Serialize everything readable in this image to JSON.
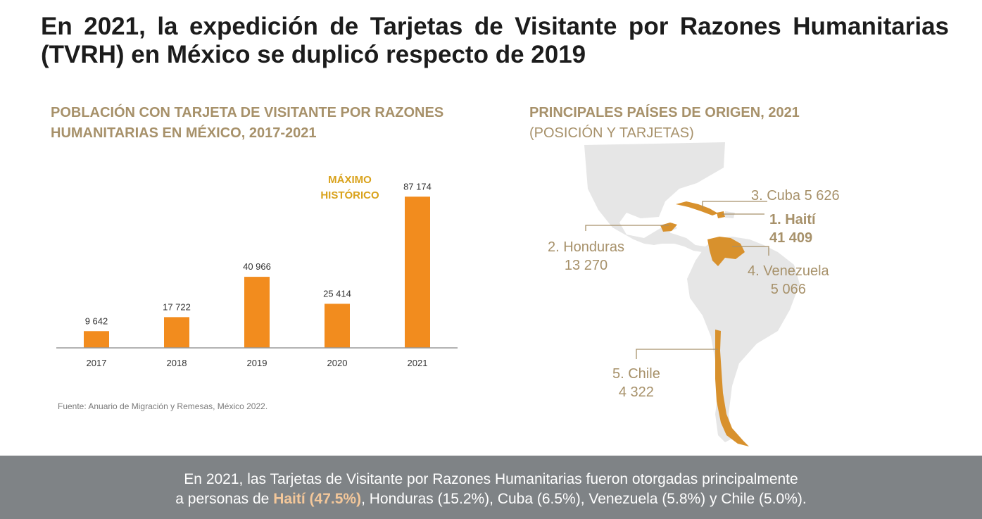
{
  "header": {
    "title": "En 2021, la expedición de Tarjetas de Visitante por Razones Humanitarias (TVRH) en México se duplicó respecto de 2019"
  },
  "chart_section": {
    "title": "POBLACIÓN CON TARJETA DE VISITANTE POR RAZONES HUMANITARIAS EN MÉXICO, 2017-2021",
    "source": "Fuente: Anuario de Migración y Remesas, México 2022."
  },
  "chart_data": {
    "type": "bar",
    "categories": [
      "2017",
      "2018",
      "2019",
      "2020",
      "2021"
    ],
    "values": [
      9642,
      17722,
      40966,
      25414,
      87174
    ],
    "value_labels": [
      "9 642",
      "17 722",
      "40 966",
      "25 414",
      "87 174"
    ],
    "annotation": {
      "text_line1": "MÁXIMO",
      "text_line2": "HISTÓRICO",
      "category": "2021"
    },
    "ylim": [
      0,
      95000
    ],
    "grid": false,
    "bar_color": "#f28c1e",
    "annotation_color": "#d9a21b"
  },
  "map_section": {
    "title": "PRINCIPALES PAÍSES DE ORIGEN, 2021",
    "subtitle": "(POSICIÓN Y TARJETAS)",
    "labels": {
      "cuba": "3. Cuba 5 626",
      "haiti_line1": "1. Haití",
      "haiti_line2": "41 409",
      "honduras_line1": "2. Honduras",
      "honduras_line2": "13 270",
      "venezuela_line1": "4. Venezuela",
      "venezuela_line2": "5 066",
      "chile_line1": "5. Chile",
      "chile_line2": "4 322"
    },
    "land_color": "#e6e6e6",
    "highlight_color": "#d8912d",
    "label_color": "#a7916a"
  },
  "footer": {
    "line1": "En 2021, las Tarjetas de Visitante por Razones Humanitarias fueron otorgadas principalmente",
    "line2_prefix": "a personas de ",
    "line2_highlight": "Haití (47.5%)",
    "line2_suffix": ", Honduras (15.2%), Cuba (6.5%), Venezuela (5.8%) y Chile (5.0%)."
  }
}
